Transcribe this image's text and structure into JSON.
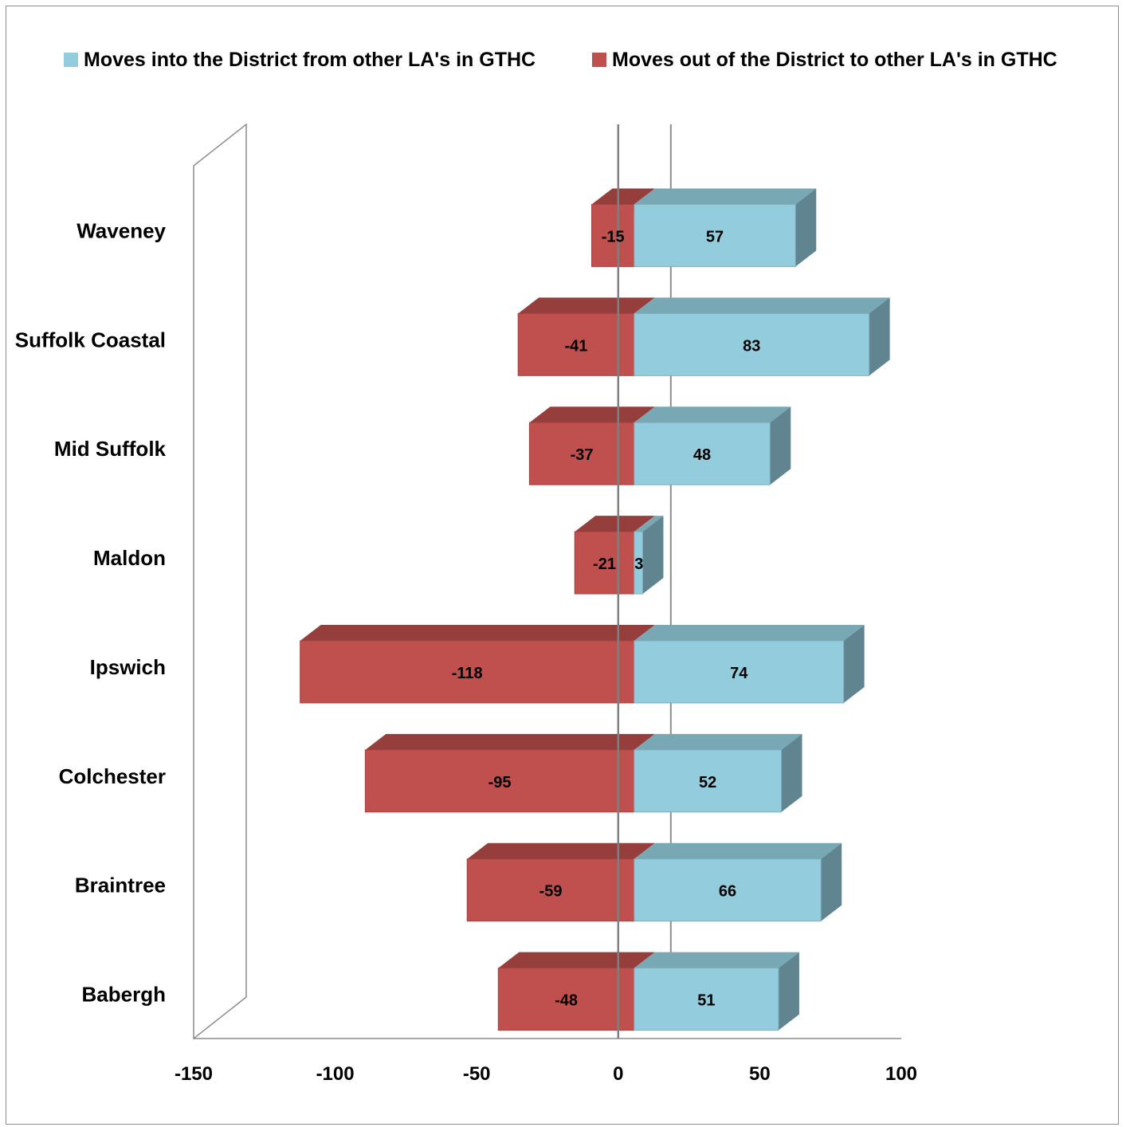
{
  "chart_data": {
    "type": "bar",
    "orientation": "horizontal",
    "style": "3d-diverging",
    "categories": [
      "Waveney",
      "Suffolk Coastal",
      "Mid Suffolk",
      "Maldon",
      "Ipswich",
      "Colchester",
      "Braintree",
      "Babergh"
    ],
    "series": [
      {
        "name": "Moves into the District from other LA's in GTHC",
        "color": "#93CDDD",
        "values": [
          57,
          83,
          48,
          3,
          74,
          52,
          66,
          51
        ]
      },
      {
        "name": "Moves out of the District to other LA's in GTHC",
        "color": "#C0504D",
        "values": [
          -15,
          -41,
          -37,
          -21,
          -118,
          -95,
          -59,
          -48
        ]
      }
    ],
    "xlim": [
      -150,
      100
    ],
    "xticks": [
      "-150",
      "-100",
      "-50",
      "0",
      "50",
      "100"
    ],
    "legend_position": "top",
    "grid": false
  }
}
